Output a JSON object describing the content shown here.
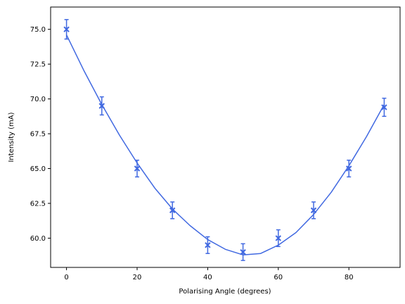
{
  "chart_data": {
    "type": "scatter",
    "title": "",
    "xlabel": "Polarising Angle (degrees)",
    "ylabel": "Intensity (mA)",
    "xlim": [
      -4.5,
      94.5
    ],
    "ylim": [
      57.9,
      76.6
    ],
    "xticks": [
      0,
      20,
      40,
      60,
      80
    ],
    "xtick_labels": [
      "0",
      "20",
      "40",
      "60",
      "80"
    ],
    "yticks": [
      60.0,
      62.5,
      65.0,
      67.5,
      70.0,
      72.5,
      75.0
    ],
    "ytick_labels": [
      "60.0",
      "62.5",
      "65.0",
      "67.5",
      "70.0",
      "72.5",
      "75.0"
    ],
    "grid": false,
    "color": "#4169e1",
    "series": [
      {
        "kind": "errorbar",
        "marker": "x",
        "x": [
          0,
          10,
          20,
          30,
          40,
          50,
          60,
          70,
          80,
          90
        ],
        "y": [
          75.0,
          69.5,
          65.0,
          62.0,
          59.5,
          59.0,
          60.0,
          62.0,
          65.0,
          69.4
        ],
        "yerr": [
          0.7,
          0.65,
          0.6,
          0.6,
          0.6,
          0.6,
          0.6,
          0.6,
          0.6,
          0.65
        ]
      },
      {
        "kind": "fit-line",
        "x": [
          0,
          5,
          10,
          15,
          20,
          25,
          30,
          35,
          40,
          45,
          50,
          55,
          60,
          65,
          70,
          75,
          80,
          85,
          90
        ],
        "y": [
          74.6,
          72.0,
          69.6,
          67.4,
          65.4,
          63.6,
          62.1,
          60.9,
          59.9,
          59.2,
          58.8,
          58.9,
          59.5,
          60.4,
          61.7,
          63.3,
          65.2,
          67.3,
          69.6
        ]
      }
    ]
  }
}
